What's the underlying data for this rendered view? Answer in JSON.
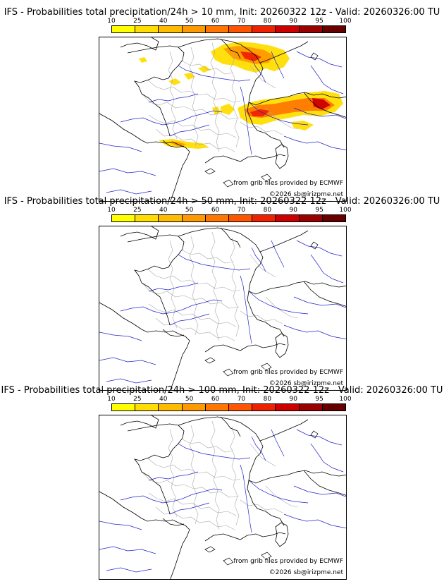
{
  "panels": [
    {
      "title": "IFS - Probabilities total precipitation/24h > 10 mm, Init: 20260322 12z - Valid: 20260326:00 TU",
      "has_precip": true
    },
    {
      "title": "IFS - Probabilities total precipitation/24h > 50 mm, Init: 20260322 12z - Valid: 20260326:00 TU",
      "has_precip": false
    },
    {
      "title": "IFS - Probabilities total precipitation/24h > 100 mm, Init: 20260322 12z - Valid: 20260326:00 TU",
      "has_precip": false
    }
  ],
  "colorbar": {
    "ticks": [
      "10",
      "25",
      "40",
      "50",
      "60",
      "70",
      "80",
      "90",
      "95",
      "100"
    ],
    "colors": [
      "#ffff00",
      "#ffdd00",
      "#ffbb00",
      "#ff9900",
      "#ff7700",
      "#ff5500",
      "#ee2200",
      "#cc0000",
      "#990000",
      "#660000"
    ]
  },
  "credits": {
    "source": "from grib files provided by ECMWF",
    "copyright": "©2026 sb@irizpme.net"
  },
  "map_colors": {
    "coast": "#000000",
    "rivers": "#2222cc",
    "regions": "#aaaaaa",
    "borders": "#000000"
  }
}
